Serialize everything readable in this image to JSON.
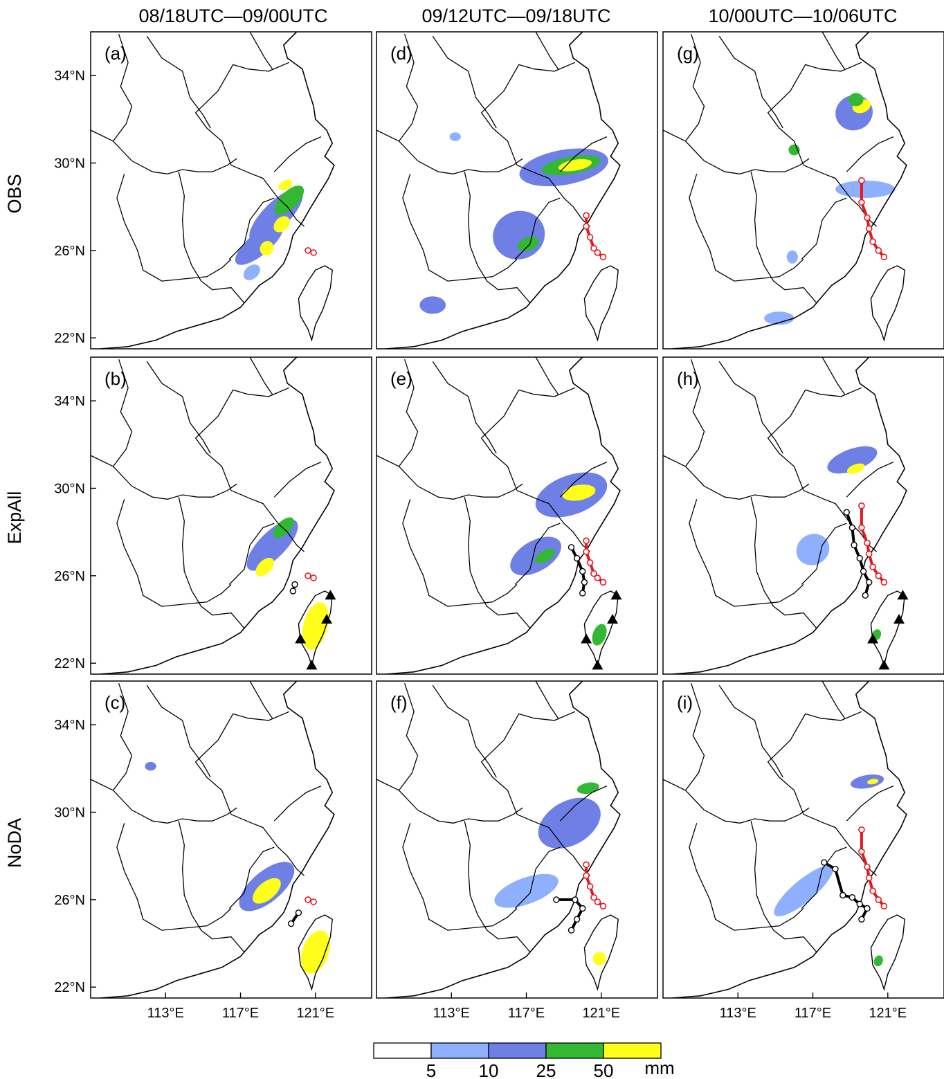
{
  "columns": [
    {
      "id": "c1",
      "title": "08/18UTC—09/00UTC"
    },
    {
      "id": "c2",
      "title": "09/12UTC—09/18UTC"
    },
    {
      "id": "c3",
      "title": "10/00UTC—10/06UTC"
    }
  ],
  "rows": [
    {
      "id": "obs",
      "label": "OBS"
    },
    {
      "id": "expall",
      "label": "ExpAll"
    },
    {
      "id": "noda",
      "label": "NoDA"
    }
  ],
  "panels": [
    {
      "label": "(a)",
      "row": 0,
      "col": 0,
      "obs_track": [
        [
          120.6,
          26.0
        ],
        [
          120.9,
          25.9
        ]
      ],
      "sim_track": []
    },
    {
      "label": "(b)",
      "row": 1,
      "col": 0,
      "obs_track": [
        [
          120.6,
          26.0
        ],
        [
          120.9,
          25.9
        ]
      ],
      "sim_track": [
        [
          119.9,
          25.6
        ],
        [
          119.8,
          25.3
        ]
      ],
      "radars": true
    },
    {
      "label": "(c)",
      "row": 2,
      "col": 0,
      "obs_track": [
        [
          120.6,
          26.0
        ],
        [
          120.9,
          25.9
        ]
      ],
      "sim_track": [
        [
          120.1,
          25.4
        ],
        [
          119.7,
          24.9
        ]
      ]
    },
    {
      "label": "(d)",
      "row": 0,
      "col": 1,
      "obs_track": [
        [
          120.2,
          27.6
        ],
        [
          120.2,
          27.1
        ],
        [
          120.4,
          26.6
        ],
        [
          120.6,
          26.1
        ],
        [
          120.8,
          25.9
        ],
        [
          121.1,
          25.7
        ]
      ],
      "sim_track": []
    },
    {
      "label": "(e)",
      "row": 1,
      "col": 1,
      "obs_track": [
        [
          120.2,
          27.6
        ],
        [
          120.2,
          27.1
        ],
        [
          120.4,
          26.6
        ],
        [
          120.6,
          26.1
        ],
        [
          120.8,
          25.9
        ],
        [
          121.1,
          25.7
        ]
      ],
      "sim_track": [
        [
          119.4,
          27.3
        ],
        [
          119.7,
          26.8
        ],
        [
          120.0,
          26.2
        ],
        [
          120.1,
          25.7
        ],
        [
          120.0,
          25.2
        ]
      ],
      "radars": true
    },
    {
      "label": "(f)",
      "row": 2,
      "col": 1,
      "obs_track": [
        [
          120.2,
          27.6
        ],
        [
          120.2,
          27.1
        ],
        [
          120.4,
          26.6
        ],
        [
          120.6,
          26.1
        ],
        [
          120.8,
          25.9
        ],
        [
          121.1,
          25.7
        ]
      ],
      "sim_track": [
        [
          118.6,
          26.0
        ],
        [
          119.6,
          26.0
        ],
        [
          120.0,
          25.6
        ],
        [
          119.7,
          25.1
        ],
        [
          119.4,
          24.6
        ]
      ]
    },
    {
      "label": "(g)",
      "row": 0,
      "col": 2,
      "obs_track": [
        [
          119.6,
          29.2
        ],
        [
          119.6,
          28.2
        ],
        [
          119.9,
          27.5
        ],
        [
          120.0,
          27.0
        ],
        [
          120.2,
          26.4
        ],
        [
          120.5,
          26.0
        ],
        [
          120.8,
          25.7
        ]
      ],
      "sim_track": []
    },
    {
      "label": "(h)",
      "row": 1,
      "col": 2,
      "obs_track": [
        [
          119.6,
          29.2
        ],
        [
          119.6,
          28.2
        ],
        [
          119.9,
          27.5
        ],
        [
          120.0,
          27.0
        ],
        [
          120.2,
          26.4
        ],
        [
          120.5,
          26.0
        ],
        [
          120.8,
          25.7
        ]
      ],
      "sim_track": [
        [
          118.8,
          28.9
        ],
        [
          119.1,
          28.2
        ],
        [
          119.2,
          27.4
        ],
        [
          119.5,
          26.8
        ],
        [
          119.7,
          26.2
        ],
        [
          120.0,
          25.7
        ],
        [
          119.8,
          25.1
        ]
      ],
      "radars": true
    },
    {
      "label": "(i)",
      "row": 2,
      "col": 2,
      "obs_track": [
        [
          119.6,
          29.2
        ],
        [
          119.6,
          28.2
        ],
        [
          119.9,
          27.5
        ],
        [
          120.0,
          27.0
        ],
        [
          120.2,
          26.4
        ],
        [
          120.5,
          26.0
        ],
        [
          120.8,
          25.7
        ]
      ],
      "sim_track": [
        [
          117.6,
          27.7
        ],
        [
          118.2,
          27.4
        ],
        [
          118.6,
          26.2
        ],
        [
          119.1,
          26.1
        ],
        [
          119.5,
          25.8
        ],
        [
          119.9,
          25.6
        ],
        [
          119.6,
          25.1
        ]
      ]
    }
  ],
  "axis": {
    "lat_ticks": [
      {
        "v": 34,
        "t": "34°N"
      },
      {
        "v": 30,
        "t": "30°N"
      },
      {
        "v": 26,
        "t": "26°N"
      },
      {
        "v": 22,
        "t": "22°N"
      }
    ],
    "lon_ticks": [
      {
        "v": 113,
        "t": "113°E"
      },
      {
        "v": 117,
        "t": "117°E"
      },
      {
        "v": 121,
        "t": "121°E"
      }
    ],
    "lon_range": [
      109,
      124
    ],
    "lat_range": [
      21.5,
      36
    ]
  },
  "colorbar": {
    "unit": "mm",
    "boundaries": [
      "5",
      "10",
      "25",
      "50"
    ],
    "colors": [
      "#ffffff",
      "#8fb0ff",
      "#6e80e6",
      "#33b833",
      "#ffff1a"
    ]
  },
  "rain_areas": [
    {
      "panel": 0,
      "cells": [
        {
          "lon": 118.9,
          "lat": 27.6,
          "rx": 1.9,
          "ry": 0.6,
          "rot": -45,
          "lvl": 2
        },
        {
          "lon": 118.0,
          "lat": 26.3,
          "rx": 1.6,
          "ry": 0.5,
          "rot": -40,
          "lvl": 2
        },
        {
          "lon": 119.6,
          "lat": 28.3,
          "rx": 1.0,
          "ry": 0.4,
          "rot": -45,
          "lvl": 3
        },
        {
          "lon": 119.2,
          "lat": 27.2,
          "rx": 0.5,
          "ry": 0.3,
          "rot": -45,
          "lvl": 4
        },
        {
          "lon": 118.4,
          "lat": 26.1,
          "rx": 0.4,
          "ry": 0.3,
          "rot": -60,
          "lvl": 4
        },
        {
          "lon": 119.4,
          "lat": 29.0,
          "rx": 0.4,
          "ry": 0.2,
          "rot": -30,
          "lvl": 4
        },
        {
          "lon": 117.6,
          "lat": 25.0,
          "rx": 0.5,
          "ry": 0.3,
          "rot": -40,
          "lvl": 1
        }
      ]
    },
    {
      "panel": 3,
      "cells": [
        {
          "lon": 119.0,
          "lat": 29.8,
          "rx": 2.4,
          "ry": 0.8,
          "rot": -10,
          "lvl": 2
        },
        {
          "lon": 119.4,
          "lat": 29.9,
          "rx": 1.6,
          "ry": 0.4,
          "rot": -10,
          "lvl": 3
        },
        {
          "lon": 119.6,
          "lat": 29.9,
          "rx": 0.9,
          "ry": 0.25,
          "rot": -10,
          "lvl": 4
        },
        {
          "lon": 116.6,
          "lat": 26.7,
          "rx": 1.4,
          "ry": 1.1,
          "rot": -20,
          "lvl": 2
        },
        {
          "lon": 117.1,
          "lat": 26.3,
          "rx": 0.6,
          "ry": 0.3,
          "rot": -20,
          "lvl": 3
        },
        {
          "lon": 112.0,
          "lat": 23.5,
          "rx": 0.7,
          "ry": 0.4,
          "rot": 0,
          "lvl": 2
        },
        {
          "lon": 113.2,
          "lat": 31.2,
          "rx": 0.3,
          "ry": 0.2,
          "rot": 0,
          "lvl": 1
        }
      ]
    },
    {
      "panel": 6,
      "cells": [
        {
          "lon": 119.2,
          "lat": 32.3,
          "rx": 1.0,
          "ry": 0.8,
          "rot": -20,
          "lvl": 2
        },
        {
          "lon": 119.6,
          "lat": 32.6,
          "rx": 0.5,
          "ry": 0.3,
          "rot": -20,
          "lvl": 4
        },
        {
          "lon": 119.3,
          "lat": 32.9,
          "rx": 0.4,
          "ry": 0.3,
          "rot": 0,
          "lvl": 3
        },
        {
          "lon": 119.8,
          "lat": 28.8,
          "rx": 1.6,
          "ry": 0.4,
          "rot": 0,
          "lvl": 1
        },
        {
          "lon": 115.2,
          "lat": 22.9,
          "rx": 0.8,
          "ry": 0.3,
          "rot": 0,
          "lvl": 1
        },
        {
          "lon": 115.9,
          "lat": 25.7,
          "rx": 0.3,
          "ry": 0.3,
          "rot": 0,
          "lvl": 1
        },
        {
          "lon": 116.0,
          "lat": 30.6,
          "rx": 0.3,
          "ry": 0.25,
          "rot": 0,
          "lvl": 3
        }
      ]
    },
    {
      "panel": 1,
      "cells": [
        {
          "lon": 118.7,
          "lat": 27.4,
          "rx": 1.8,
          "ry": 0.6,
          "rot": -45,
          "lvl": 2
        },
        {
          "lon": 118.3,
          "lat": 26.4,
          "rx": 0.6,
          "ry": 0.3,
          "rot": -45,
          "lvl": 4
        },
        {
          "lon": 119.3,
          "lat": 28.2,
          "rx": 0.7,
          "ry": 0.3,
          "rot": -45,
          "lvl": 3
        },
        {
          "lon": 121.0,
          "lat": 23.7,
          "rx": 1.3,
          "ry": 0.55,
          "rot": -75,
          "lvl": 4
        }
      ]
    },
    {
      "panel": 4,
      "cells": [
        {
          "lon": 119.4,
          "lat": 29.7,
          "rx": 2.0,
          "ry": 0.9,
          "rot": -20,
          "lvl": 2
        },
        {
          "lon": 119.8,
          "lat": 29.8,
          "rx": 0.9,
          "ry": 0.35,
          "rot": -10,
          "lvl": 4
        },
        {
          "lon": 117.5,
          "lat": 26.9,
          "rx": 1.5,
          "ry": 0.7,
          "rot": -30,
          "lvl": 2
        },
        {
          "lon": 118.0,
          "lat": 26.9,
          "rx": 0.6,
          "ry": 0.25,
          "rot": -30,
          "lvl": 3
        },
        {
          "lon": 120.9,
          "lat": 23.3,
          "rx": 0.6,
          "ry": 0.3,
          "rot": -70,
          "lvl": 3
        }
      ]
    },
    {
      "panel": 7,
      "cells": [
        {
          "lon": 119.1,
          "lat": 31.3,
          "rx": 1.4,
          "ry": 0.5,
          "rot": -20,
          "lvl": 2
        },
        {
          "lon": 119.3,
          "lat": 30.9,
          "rx": 0.5,
          "ry": 0.2,
          "rot": -20,
          "lvl": 4
        },
        {
          "lon": 117.0,
          "lat": 27.2,
          "rx": 0.9,
          "ry": 0.7,
          "rot": -30,
          "lvl": 1
        },
        {
          "lon": 120.4,
          "lat": 23.3,
          "rx": 0.3,
          "ry": 0.2,
          "rot": -70,
          "lvl": 3
        }
      ]
    },
    {
      "panel": 2,
      "cells": [
        {
          "lon": 118.4,
          "lat": 26.6,
          "rx": 1.8,
          "ry": 0.7,
          "rot": -40,
          "lvl": 2
        },
        {
          "lon": 118.4,
          "lat": 26.4,
          "rx": 0.9,
          "ry": 0.4,
          "rot": -40,
          "lvl": 4
        },
        {
          "lon": 121.0,
          "lat": 23.6,
          "rx": 1.2,
          "ry": 0.6,
          "rot": -70,
          "lvl": 4
        },
        {
          "lon": 112.2,
          "lat": 32.1,
          "rx": 0.3,
          "ry": 0.2,
          "rot": 0,
          "lvl": 2
        }
      ]
    },
    {
      "panel": 5,
      "cells": [
        {
          "lon": 119.3,
          "lat": 29.5,
          "rx": 1.8,
          "ry": 1.0,
          "rot": -30,
          "lvl": 2
        },
        {
          "lon": 120.3,
          "lat": 31.1,
          "rx": 0.6,
          "ry": 0.25,
          "rot": -10,
          "lvl": 3
        },
        {
          "lon": 117.0,
          "lat": 26.4,
          "rx": 1.8,
          "ry": 0.6,
          "rot": -20,
          "lvl": 1
        },
        {
          "lon": 120.9,
          "lat": 23.3,
          "rx": 0.35,
          "ry": 0.3,
          "rot": -70,
          "lvl": 4
        }
      ]
    },
    {
      "panel": 8,
      "cells": [
        {
          "lon": 116.5,
          "lat": 26.4,
          "rx": 2.0,
          "ry": 0.5,
          "rot": -40,
          "lvl": 1
        },
        {
          "lon": 119.9,
          "lat": 31.4,
          "rx": 0.9,
          "ry": 0.3,
          "rot": -10,
          "lvl": 2
        },
        {
          "lon": 120.2,
          "lat": 31.4,
          "rx": 0.3,
          "ry": 0.12,
          "rot": -10,
          "lvl": 4
        },
        {
          "lon": 120.5,
          "lat": 23.2,
          "rx": 0.3,
          "ry": 0.2,
          "rot": -70,
          "lvl": 3
        }
      ]
    }
  ]
}
